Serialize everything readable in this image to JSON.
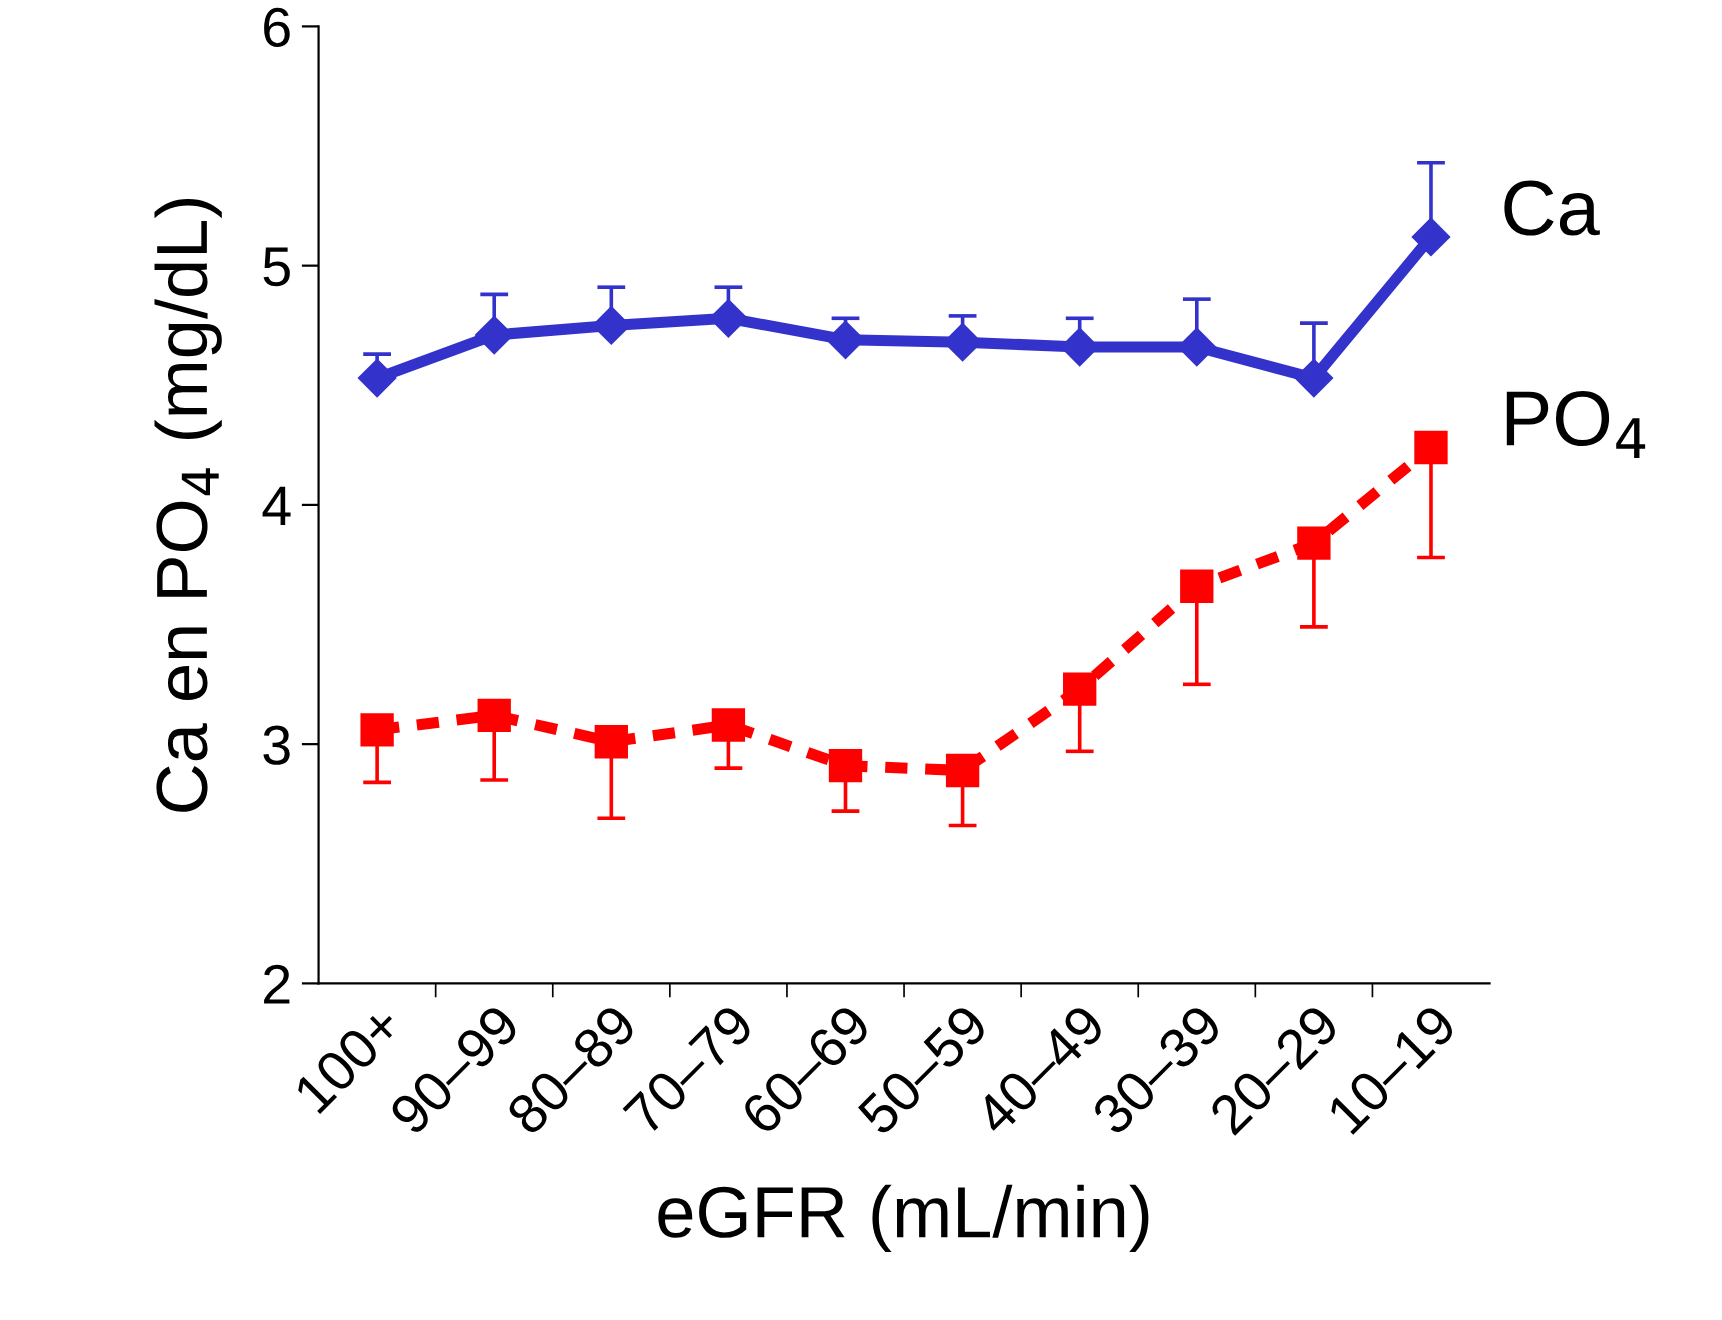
{
  "chart_data": {
    "type": "line",
    "xlabel": "eGFR (mL/min)",
    "ylabel": "Ca en PO$_{4}$ (mg/dL)",
    "categories": [
      "100+",
      "90–99",
      "80–89",
      "70–79",
      "60–69",
      "50–59",
      "40–49",
      "30–39",
      "20–29",
      "10–19"
    ],
    "ylim": [
      2,
      6
    ],
    "yticks": [
      2,
      3,
      4,
      5,
      6
    ],
    "grid": false,
    "series": [
      {
        "name": "Ca",
        "color": "#3333cc",
        "marker": "diamond",
        "line_style": "solid",
        "values": [
          4.53,
          4.71,
          4.75,
          4.78,
          4.69,
          4.68,
          4.66,
          4.66,
          4.53,
          5.12
        ],
        "errors": [
          [
            4.53,
            4.63
          ],
          [
            4.71,
            4.88
          ],
          [
            4.75,
            4.91
          ],
          [
            4.78,
            4.91
          ],
          [
            4.69,
            4.78
          ],
          [
            4.68,
            4.79
          ],
          [
            4.66,
            4.78
          ],
          [
            4.66,
            4.86
          ],
          [
            4.53,
            4.76
          ],
          [
            5.12,
            5.43
          ]
        ]
      },
      {
        "name": "PO$_{4}$",
        "color": "#ff0000",
        "marker": "square",
        "line_style": "dashed",
        "values": [
          3.06,
          3.12,
          3.01,
          3.08,
          2.91,
          2.89,
          3.23,
          3.66,
          3.84,
          4.24
        ],
        "errors": [
          [
            2.84,
            3.06
          ],
          [
            2.85,
            3.12
          ],
          [
            2.69,
            3.01
          ],
          [
            2.9,
            3.08
          ],
          [
            2.72,
            2.91
          ],
          [
            2.66,
            2.89
          ],
          [
            2.97,
            3.23
          ],
          [
            3.25,
            3.66
          ],
          [
            3.49,
            3.84
          ],
          [
            3.78,
            4.24
          ]
        ]
      }
    ]
  }
}
